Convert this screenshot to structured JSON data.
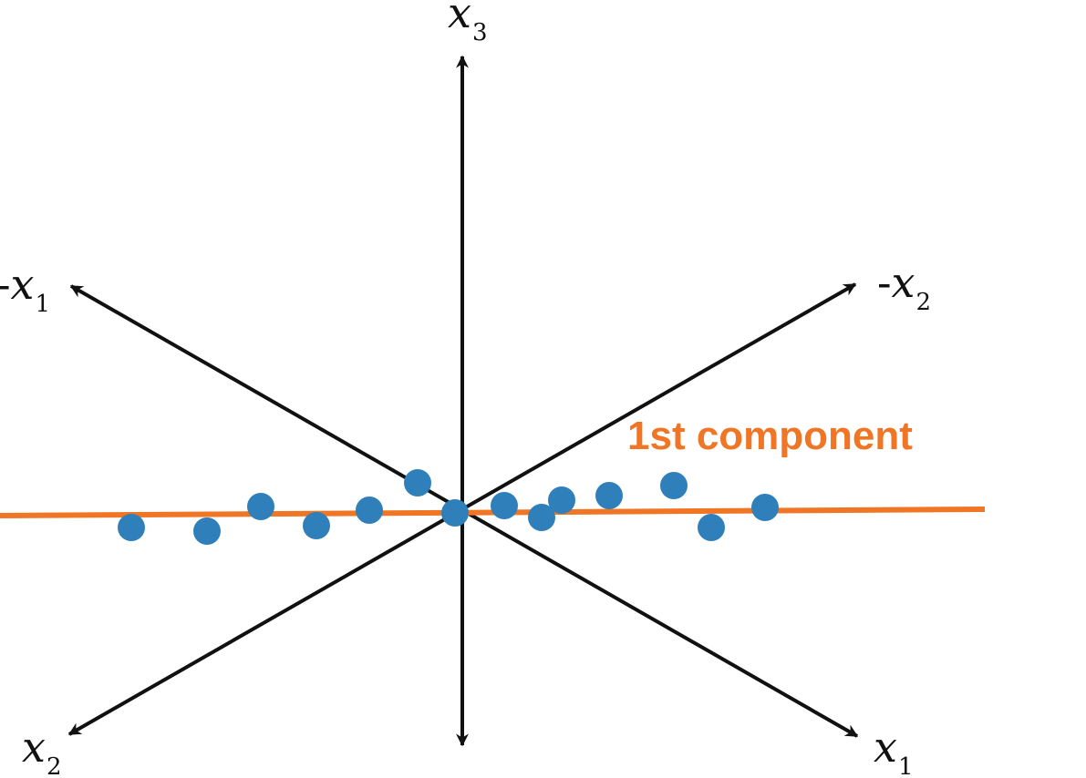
{
  "colors": {
    "axis": "#111111",
    "component_line": "#f07524",
    "point": "#2f7fba",
    "background": "#ffffff"
  },
  "labels": {
    "x3": {
      "prefix": "",
      "var": "x",
      "sub": "3"
    },
    "neg_x1": {
      "prefix": "-",
      "var": "x",
      "sub": "1"
    },
    "neg_x2": {
      "prefix": "-",
      "var": "x",
      "sub": "2"
    },
    "x1": {
      "prefix": "",
      "var": "x",
      "sub": "1"
    },
    "x2": {
      "prefix": "",
      "var": "x",
      "sub": "2"
    },
    "component": "1st component"
  },
  "points_count": 14
}
